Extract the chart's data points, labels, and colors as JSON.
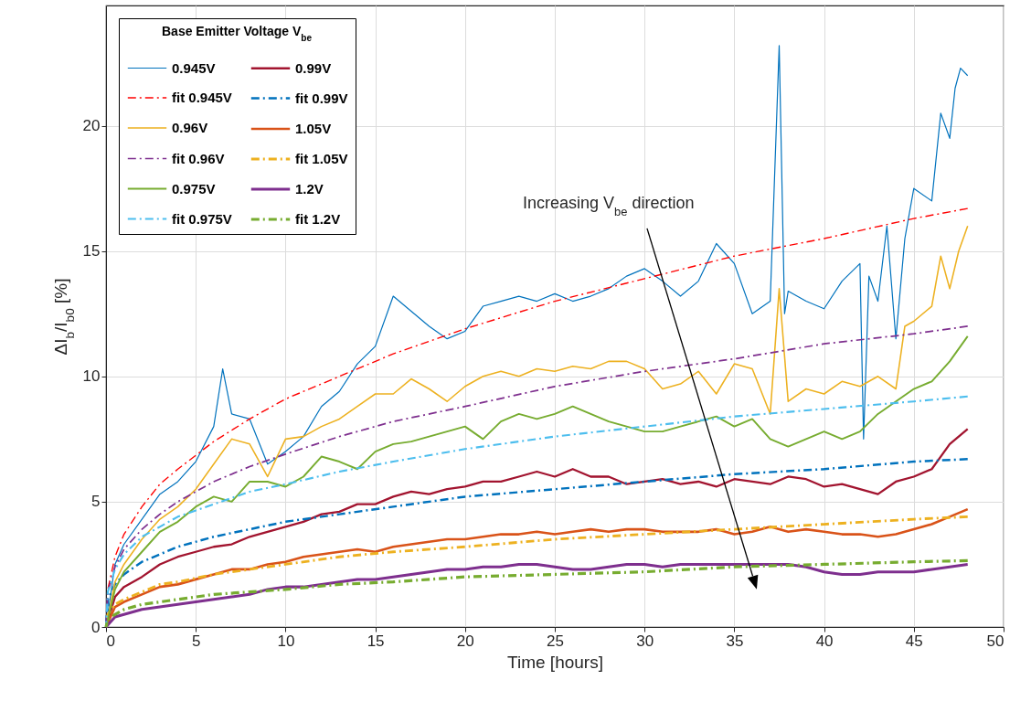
{
  "chart_data": {
    "type": "line",
    "xlabel": "Time [hours]",
    "ylabel": "ΔI$_{b}$/I$_{b0}$ [%]",
    "legend_title": "Base Emitter Voltage V$_{be}$",
    "xlim": [
      0,
      50
    ],
    "xticks": [
      0,
      5,
      10,
      15,
      20,
      25,
      30,
      35,
      40,
      45,
      50
    ],
    "ylim": [
      0,
      24.8
    ],
    "yticks": [
      0,
      5,
      10,
      15,
      20
    ],
    "grid": true,
    "legend": "top left",
    "annotations": [
      "Increasing V$_{be}$ direction"
    ],
    "series": [
      {
        "name": "0.945V",
        "type": "line",
        "line_style": "solid",
        "color": "#0072bd",
        "x": [
          0,
          0.5,
          1,
          2,
          3,
          4,
          5,
          6,
          6.5,
          7,
          8,
          9,
          10,
          11,
          12,
          13,
          14,
          15,
          16,
          17,
          18,
          19,
          20,
          21,
          22,
          23,
          24,
          25,
          26,
          27,
          28,
          29,
          30,
          31,
          32,
          33,
          34,
          35,
          36,
          37,
          37.5,
          37.8,
          38,
          39,
          40,
          41,
          42,
          42.2,
          42.5,
          43,
          43.5,
          44,
          44.5,
          45,
          46,
          46.5,
          47,
          47.3,
          47.6,
          48
        ],
        "values": [
          0,
          2.5,
          3.3,
          4.3,
          5.3,
          5.8,
          6.6,
          8.0,
          10.3,
          8.5,
          8.3,
          6.5,
          7.0,
          7.6,
          8.8,
          9.4,
          10.5,
          11.2,
          13.2,
          12.6,
          12.0,
          11.5,
          11.8,
          12.8,
          13.0,
          13.2,
          13.0,
          13.3,
          13.0,
          13.2,
          13.5,
          14.0,
          14.3,
          13.8,
          13.2,
          13.8,
          15.3,
          14.5,
          12.5,
          13.0,
          23.2,
          12.5,
          13.4,
          13.0,
          12.7,
          13.8,
          14.5,
          7.5,
          14.0,
          13.0,
          16.0,
          11.5,
          15.5,
          17.5,
          17.0,
          20.5,
          19.5,
          21.5,
          22.3,
          22.0
        ]
      },
      {
        "name": "0.99V",
        "type": "line",
        "line_style": "solid",
        "color": "#a2142f",
        "x": [
          0,
          0.5,
          1,
          2,
          3,
          4,
          5,
          6,
          7,
          8,
          9,
          10,
          11,
          12,
          13,
          14,
          15,
          16,
          17,
          18,
          19,
          20,
          21,
          22,
          23,
          24,
          25,
          26,
          27,
          28,
          29,
          30,
          31,
          32,
          33,
          34,
          35,
          36,
          37,
          38,
          39,
          40,
          41,
          42,
          43,
          44,
          45,
          46,
          47,
          48
        ],
        "values": [
          0,
          1.2,
          1.6,
          2.0,
          2.5,
          2.8,
          3.0,
          3.2,
          3.3,
          3.6,
          3.8,
          4.0,
          4.2,
          4.5,
          4.6,
          4.9,
          4.9,
          5.2,
          5.4,
          5.3,
          5.5,
          5.6,
          5.8,
          5.8,
          6.0,
          6.2,
          6.0,
          6.3,
          6.0,
          6.0,
          5.7,
          5.8,
          5.9,
          5.7,
          5.8,
          5.6,
          5.9,
          5.8,
          5.7,
          6.0,
          5.9,
          5.6,
          5.7,
          5.5,
          5.3,
          5.8,
          6.0,
          6.3,
          7.3,
          7.9
        ]
      },
      {
        "name": "fit 0.945V",
        "type": "line",
        "line_style": "dashed",
        "color": "#ff0000",
        "x": [
          0,
          0.1,
          0.5,
          1,
          2,
          3,
          4,
          6,
          8,
          10,
          13,
          16,
          20,
          25,
          30,
          35,
          40,
          45,
          48
        ],
        "values": [
          0,
          1.5,
          2.8,
          3.7,
          4.8,
          5.7,
          6.3,
          7.4,
          8.3,
          9.1,
          10.0,
          10.9,
          11.9,
          13.0,
          13.9,
          14.8,
          15.5,
          16.3,
          16.7
        ]
      },
      {
        "name": "fit 0.99V",
        "type": "line",
        "line_style": "dashed",
        "color": "#0072bd",
        "x": [
          0,
          0.1,
          0.5,
          1,
          2,
          3,
          4,
          6,
          8,
          10,
          13,
          16,
          20,
          25,
          30,
          35,
          40,
          45,
          48
        ],
        "values": [
          0,
          1.1,
          1.7,
          2.1,
          2.6,
          2.9,
          3.2,
          3.6,
          3.9,
          4.2,
          4.5,
          4.8,
          5.2,
          5.5,
          5.8,
          6.1,
          6.3,
          6.6,
          6.7
        ]
      },
      {
        "name": "0.96V",
        "type": "line",
        "line_style": "solid",
        "color": "#edb120",
        "x": [
          0,
          0.5,
          1,
          2,
          3,
          4,
          5,
          6,
          7,
          8,
          9,
          10,
          11,
          12,
          13,
          14,
          15,
          16,
          17,
          18,
          19,
          20,
          21,
          22,
          23,
          24,
          25,
          26,
          27,
          28,
          29,
          30,
          31,
          32,
          33,
          34,
          35,
          36,
          37,
          37.5,
          38,
          39,
          40,
          41,
          42,
          43,
          44,
          44.5,
          45,
          46,
          46.5,
          47,
          47.5,
          48
        ],
        "values": [
          0,
          1.8,
          2.5,
          3.5,
          4.3,
          4.8,
          5.5,
          6.5,
          7.5,
          7.3,
          6.0,
          7.5,
          7.6,
          8.0,
          8.3,
          8.8,
          9.3,
          9.3,
          9.9,
          9.5,
          9.0,
          9.6,
          10.0,
          10.2,
          10.0,
          10.3,
          10.2,
          10.4,
          10.3,
          10.6,
          10.6,
          10.3,
          9.5,
          9.7,
          10.2,
          9.3,
          10.5,
          10.3,
          8.5,
          13.5,
          9.0,
          9.5,
          9.3,
          9.8,
          9.6,
          10.0,
          9.5,
          12.0,
          12.2,
          12.8,
          14.8,
          13.5,
          15.0,
          16.0
        ]
      },
      {
        "name": "1.05V",
        "type": "line",
        "line_style": "solid",
        "color": "#d95319",
        "x": [
          0,
          0.5,
          1,
          2,
          3,
          4,
          5,
          6,
          7,
          8,
          9,
          10,
          11,
          12,
          13,
          14,
          15,
          16,
          17,
          18,
          19,
          20,
          21,
          22,
          23,
          24,
          25,
          26,
          27,
          28,
          29,
          30,
          31,
          32,
          33,
          34,
          35,
          36,
          37,
          38,
          39,
          40,
          41,
          42,
          43,
          44,
          45,
          46,
          47,
          48
        ],
        "values": [
          0,
          0.8,
          1.0,
          1.3,
          1.6,
          1.7,
          1.9,
          2.1,
          2.3,
          2.3,
          2.5,
          2.6,
          2.8,
          2.9,
          3.0,
          3.1,
          3.0,
          3.2,
          3.3,
          3.4,
          3.5,
          3.5,
          3.6,
          3.7,
          3.7,
          3.8,
          3.7,
          3.8,
          3.9,
          3.8,
          3.9,
          3.9,
          3.8,
          3.8,
          3.8,
          3.9,
          3.7,
          3.8,
          4.0,
          3.8,
          3.9,
          3.8,
          3.7,
          3.7,
          3.6,
          3.7,
          3.9,
          4.1,
          4.4,
          4.7
        ]
      },
      {
        "name": "fit 0.96V",
        "type": "line",
        "line_style": "dashed",
        "color": "#7e2f8e",
        "x": [
          0,
          0.1,
          0.5,
          1,
          2,
          3,
          4,
          6,
          8,
          10,
          13,
          16,
          20,
          25,
          30,
          35,
          40,
          45,
          48
        ],
        "values": [
          0,
          1.4,
          2.4,
          3.1,
          3.9,
          4.5,
          5.0,
          5.8,
          6.4,
          6.9,
          7.6,
          8.2,
          8.8,
          9.6,
          10.2,
          10.7,
          11.3,
          11.7,
          12.0
        ]
      },
      {
        "name": "fit 1.05V",
        "type": "line",
        "line_style": "dashed",
        "color": "#edb120",
        "x": [
          0,
          0.1,
          0.5,
          1,
          2,
          3,
          4,
          6,
          8,
          10,
          13,
          16,
          20,
          25,
          30,
          35,
          40,
          45,
          48
        ],
        "values": [
          0,
          0.5,
          0.9,
          1.1,
          1.4,
          1.7,
          1.8,
          2.1,
          2.3,
          2.5,
          2.8,
          3.0,
          3.2,
          3.5,
          3.7,
          3.9,
          4.1,
          4.3,
          4.4
        ]
      },
      {
        "name": "0.975V",
        "type": "line",
        "line_style": "solid",
        "color": "#77ac30",
        "x": [
          0,
          0.5,
          1,
          2,
          3,
          4,
          5,
          6,
          7,
          8,
          9,
          10,
          11,
          12,
          13,
          14,
          15,
          16,
          17,
          18,
          19,
          20,
          21,
          22,
          23,
          24,
          25,
          26,
          27,
          28,
          29,
          30,
          31,
          32,
          33,
          34,
          35,
          36,
          37,
          38,
          39,
          40,
          41,
          42,
          43,
          44,
          45,
          46,
          47,
          48
        ],
        "values": [
          0,
          1.5,
          2.2,
          3.0,
          3.8,
          4.2,
          4.8,
          5.2,
          5.0,
          5.8,
          5.8,
          5.6,
          6.0,
          6.8,
          6.6,
          6.3,
          7.0,
          7.3,
          7.4,
          7.6,
          7.8,
          8.0,
          7.5,
          8.2,
          8.5,
          8.3,
          8.5,
          8.8,
          8.5,
          8.2,
          8.0,
          7.8,
          7.8,
          8.0,
          8.2,
          8.4,
          8.0,
          8.3,
          7.5,
          7.2,
          7.5,
          7.8,
          7.5,
          7.8,
          8.5,
          9.0,
          9.5,
          9.8,
          10.6,
          11.6
        ]
      },
      {
        "name": "1.2V",
        "type": "line",
        "line_style": "solid",
        "color": "#7e2f8e",
        "x": [
          0,
          0.5,
          1,
          2,
          3,
          4,
          5,
          6,
          7,
          8,
          9,
          10,
          11,
          12,
          13,
          14,
          15,
          16,
          17,
          18,
          19,
          20,
          21,
          22,
          23,
          24,
          25,
          26,
          27,
          28,
          29,
          30,
          31,
          32,
          33,
          34,
          35,
          36,
          37,
          38,
          39,
          40,
          41,
          42,
          43,
          44,
          45,
          46,
          47,
          48
        ],
        "values": [
          0,
          0.4,
          0.5,
          0.7,
          0.8,
          0.9,
          1.0,
          1.1,
          1.2,
          1.3,
          1.5,
          1.6,
          1.6,
          1.7,
          1.8,
          1.9,
          1.9,
          2.0,
          2.1,
          2.2,
          2.3,
          2.3,
          2.4,
          2.4,
          2.5,
          2.5,
          2.4,
          2.3,
          2.3,
          2.4,
          2.5,
          2.5,
          2.4,
          2.5,
          2.5,
          2.5,
          2.5,
          2.5,
          2.5,
          2.5,
          2.4,
          2.2,
          2.1,
          2.1,
          2.2,
          2.2,
          2.2,
          2.3,
          2.4,
          2.5
        ]
      },
      {
        "name": "fit 0.975V",
        "type": "line",
        "line_style": "dashed",
        "color": "#4dbeee",
        "x": [
          0,
          0.1,
          0.5,
          1,
          2,
          3,
          4,
          6,
          8,
          10,
          13,
          16,
          20,
          25,
          30,
          35,
          40,
          45,
          48
        ],
        "values": [
          0,
          1.4,
          2.3,
          2.9,
          3.6,
          4.0,
          4.4,
          4.9,
          5.4,
          5.7,
          6.2,
          6.6,
          7.1,
          7.6,
          8.0,
          8.4,
          8.7,
          9.0,
          9.2
        ]
      },
      {
        "name": "fit 1.2V",
        "type": "line",
        "line_style": "dashed",
        "color": "#77ac30",
        "x": [
          0,
          0.1,
          0.5,
          1,
          2,
          3,
          4,
          6,
          8,
          10,
          13,
          16,
          20,
          25,
          30,
          35,
          40,
          45,
          48
        ],
        "values": [
          0,
          0.3,
          0.5,
          0.7,
          0.9,
          1.0,
          1.1,
          1.3,
          1.4,
          1.5,
          1.7,
          1.8,
          2.0,
          2.1,
          2.2,
          2.4,
          2.5,
          2.6,
          2.65
        ]
      }
    ]
  }
}
